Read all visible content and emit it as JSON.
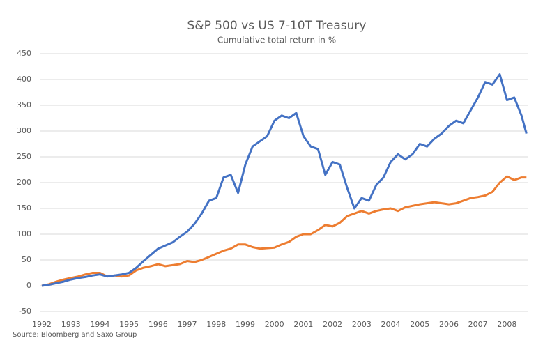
{
  "chart_data": {
    "type": "line",
    "title": "S&P 500 vs US 7-10T Treasury",
    "subtitle": "Cumulative total return in %",
    "source": "Source: Bloomberg and Saxo Group",
    "x": [
      1992,
      1992.25,
      1992.5,
      1992.75,
      1993,
      1993.25,
      1993.5,
      1993.75,
      1994,
      1994.25,
      1994.5,
      1994.75,
      1995,
      1995.25,
      1995.5,
      1995.75,
      1996,
      1996.25,
      1996.5,
      1996.75,
      1997,
      1997.25,
      1997.5,
      1997.75,
      1998,
      1998.25,
      1998.5,
      1998.75,
      1999,
      1999.25,
      1999.5,
      1999.75,
      2000,
      2000.25,
      2000.5,
      2000.75,
      2001,
      2001.25,
      2001.5,
      2001.75,
      2002,
      2002.25,
      2002.5,
      2002.75,
      2003,
      2003.25,
      2003.5,
      2003.75,
      2004,
      2004.25,
      2004.5,
      2004.75,
      2005,
      2005.25,
      2005.5,
      2005.75,
      2006,
      2006.25,
      2006.5,
      2006.75,
      2007,
      2007.25,
      2007.5,
      2007.75,
      2008,
      2008.25,
      2008.5,
      2008.67
    ],
    "series": [
      {
        "name": "S&P 500",
        "color": "#4472c4",
        "values": [
          0,
          2,
          5,
          8,
          12,
          15,
          17,
          20,
          22,
          18,
          20,
          22,
          25,
          35,
          48,
          60,
          72,
          78,
          84,
          95,
          105,
          120,
          140,
          165,
          170,
          210,
          215,
          180,
          235,
          270,
          280,
          290,
          320,
          330,
          325,
          335,
          290,
          270,
          265,
          215,
          240,
          235,
          190,
          150,
          170,
          165,
          195,
          210,
          240,
          255,
          245,
          255,
          275,
          270,
          285,
          295,
          310,
          320,
          315,
          340,
          365,
          395,
          390,
          410,
          360,
          365,
          330,
          295
        ]
      },
      {
        "name": "US 7-10T Treasury",
        "color": "#ed7d31",
        "values": [
          0,
          3,
          8,
          12,
          15,
          18,
          22,
          25,
          25,
          18,
          20,
          18,
          20,
          30,
          35,
          38,
          42,
          38,
          40,
          42,
          48,
          46,
          50,
          56,
          62,
          68,
          72,
          80,
          80,
          75,
          72,
          73,
          74,
          80,
          85,
          95,
          100,
          100,
          108,
          118,
          115,
          122,
          135,
          140,
          145,
          140,
          145,
          148,
          150,
          145,
          152,
          155,
          158,
          160,
          162,
          160,
          158,
          160,
          165,
          170,
          172,
          175,
          182,
          200,
          212,
          205,
          210,
          210
        ]
      }
    ],
    "xlim": [
      1991.64,
      2008.71
    ],
    "xticks": [
      1992,
      1993,
      1994,
      1995,
      1996,
      1997,
      1998,
      1999,
      2000,
      2001,
      2002,
      2003,
      2004,
      2005,
      2006,
      2007,
      2008
    ],
    "ylim": [
      -50,
      450
    ],
    "yticks": [
      -50,
      0,
      50,
      100,
      150,
      200,
      250,
      300,
      350,
      400,
      450
    ],
    "grid": true
  }
}
